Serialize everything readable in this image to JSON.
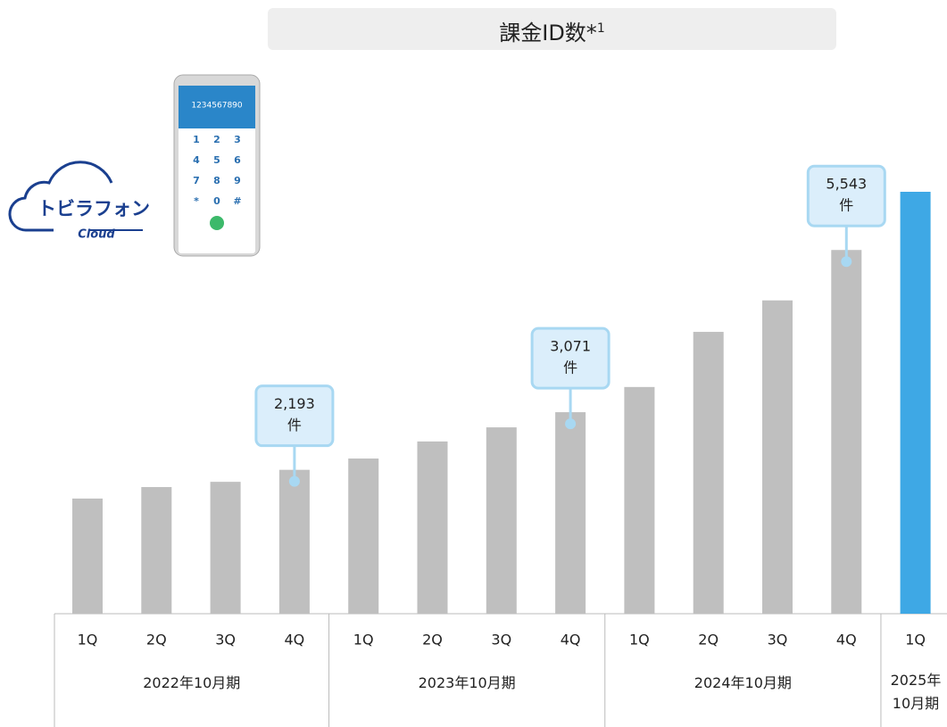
{
  "chart_data": {
    "type": "bar",
    "title": "課金ID数*",
    "title_sup": "1",
    "logo": {
      "name": "トビラフォン",
      "sub": "Cloud"
    },
    "phone": {
      "number": "1234567890",
      "keys": [
        "1",
        "2",
        "3",
        "4",
        "5",
        "6",
        "7",
        "8",
        "9",
        "*",
        "0",
        "#"
      ]
    },
    "value_label_unit": "件",
    "periods": [
      {
        "label": "2022年10月期",
        "color": "#bfbfbf",
        "categories": [
          "1Q",
          "2Q",
          "3Q",
          "4Q"
        ],
        "values": [
          1755,
          1930,
          2010,
          2193
        ],
        "value_labels": [
          null,
          null,
          null,
          "2,193"
        ]
      },
      {
        "label": "2023年10月期",
        "color": "#bfbfbf",
        "categories": [
          "1Q",
          "2Q",
          "3Q",
          "4Q"
        ],
        "values": [
          2365,
          2625,
          2840,
          3071
        ],
        "value_labels": [
          null,
          null,
          null,
          "3,071"
        ]
      },
      {
        "label": "2024年10月期",
        "color": "#bfbfbf",
        "categories": [
          "1Q",
          "2Q",
          "3Q",
          "4Q"
        ],
        "values": [
          3455,
          4295,
          4775,
          5543
        ],
        "value_labels": [
          null,
          null,
          null,
          "5,543"
        ]
      },
      {
        "label": "2025年10月期",
        "color": "#3ea8e5",
        "categories": [
          "1Q"
        ],
        "values": [
          6430
        ],
        "value_labels": [
          null
        ]
      }
    ]
  }
}
